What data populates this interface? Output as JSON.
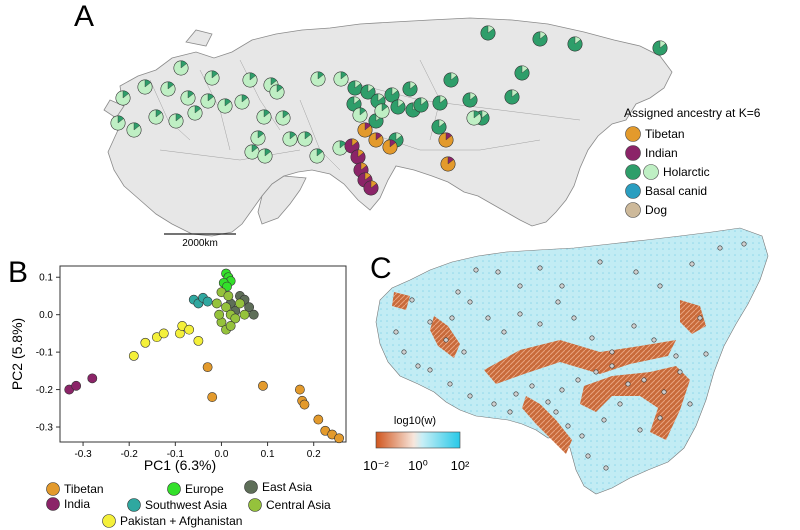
{
  "panels": {
    "a": {
      "letter": "A",
      "scalebar_label": "2000km",
      "legend": {
        "title": "Assigned ancestry at K=6",
        "items": [
          {
            "label": "Tibetan",
            "colors": [
              "#E39A2C"
            ]
          },
          {
            "label": "Indian",
            "colors": [
              "#8B2468"
            ]
          },
          {
            "label": "Holarctic",
            "colors": [
              "#2E9E6A",
              "#BFEFC4"
            ]
          },
          {
            "label": "Basal canid",
            "colors": [
              "#2A9EC0"
            ]
          },
          {
            "label": "Dog",
            "colors": [
              "#CDB99A"
            ]
          }
        ]
      },
      "colors": {
        "tibetan": "#E39A2C",
        "indian": "#8B2468",
        "holarctic_dark": "#2E9E6A",
        "holarctic_light": "#BFEFC4",
        "basal": "#2A9EC0",
        "dog": "#CDB99A"
      }
    },
    "b": {
      "letter": "B",
      "legend": [
        {
          "label": "Tibetan",
          "color": "#E39A2C"
        },
        {
          "label": "India",
          "color": "#8B2468"
        },
        {
          "label": "Pakistan + Afghanistan",
          "color": "#F4F03A"
        },
        {
          "label": "Europe",
          "color": "#33E02A"
        },
        {
          "label": "Southwest Asia",
          "color": "#2FA8A0"
        },
        {
          "label": "East Asia",
          "color": "#5E6E58"
        },
        {
          "label": "Central Asia",
          "color": "#95C23C"
        }
      ],
      "chart_data": {
        "type": "scatter",
        "xlabel": "PC1 (6.3%)",
        "ylabel": "PC2 (5.8%)",
        "xlim": [
          -0.35,
          0.27
        ],
        "ylim": [
          -0.34,
          0.13
        ],
        "xticks": [
          -0.3,
          -0.2,
          -0.1,
          0.0,
          0.1,
          0.2
        ],
        "yticks": [
          0.1,
          0.0,
          -0.1,
          -0.2,
          -0.3
        ],
        "xtick_labels": [
          "-0.3",
          "-0.2",
          "-0.1",
          "0.0",
          "0.1",
          "0.2"
        ],
        "ytick_labels": [
          "0.1",
          "0.0",
          "-0.1",
          "-0.2",
          "-0.3"
        ],
        "series": [
          {
            "name": "Tibetan",
            "color": "#E39A2C",
            "points": [
              [
                -0.03,
                -0.14
              ],
              [
                -0.02,
                -0.22
              ],
              [
                0.09,
                -0.19
              ],
              [
                0.17,
                -0.2
              ],
              [
                0.175,
                -0.23
              ],
              [
                0.18,
                -0.24
              ],
              [
                0.21,
                -0.28
              ],
              [
                0.225,
                -0.31
              ],
              [
                0.24,
                -0.32
              ],
              [
                0.255,
                -0.33
              ]
            ]
          },
          {
            "name": "India",
            "color": "#8B2468",
            "points": [
              [
                -0.33,
                -0.2
              ],
              [
                -0.315,
                -0.19
              ],
              [
                -0.28,
                -0.17
              ]
            ]
          },
          {
            "name": "Pakistan + Afghanistan",
            "color": "#F4F03A",
            "points": [
              [
                -0.19,
                -0.11
              ],
              [
                -0.165,
                -0.075
              ],
              [
                -0.14,
                -0.06
              ],
              [
                -0.125,
                -0.05
              ],
              [
                -0.09,
                -0.05
              ],
              [
                -0.085,
                -0.03
              ],
              [
                -0.07,
                -0.04
              ],
              [
                -0.05,
                -0.07
              ]
            ]
          },
          {
            "name": "Europe",
            "color": "#33E02A",
            "points": [
              [
                0.01,
                0.11
              ],
              [
                0.015,
                0.1
              ],
              [
                0.02,
                0.09
              ],
              [
                0.005,
                0.085
              ],
              [
                0.012,
                0.075
              ]
            ]
          },
          {
            "name": "Southwest Asia",
            "color": "#2FA8A0",
            "points": [
              [
                -0.06,
                0.04
              ],
              [
                -0.05,
                0.03
              ],
              [
                -0.04,
                0.045
              ],
              [
                -0.03,
                0.035
              ]
            ]
          },
          {
            "name": "East Asia",
            "color": "#5E6E58",
            "points": [
              [
                0.02,
                0.03
              ],
              [
                0.04,
                0.05
              ],
              [
                0.05,
                0.04
              ],
              [
                0.06,
                0.02
              ],
              [
                0.07,
                0.0
              ],
              [
                0.03,
                0.01
              ]
            ]
          },
          {
            "name": "Central Asia",
            "color": "#95C23C",
            "points": [
              [
                0.0,
                0.06
              ],
              [
                0.01,
                0.02
              ],
              [
                0.02,
                0.0
              ],
              [
                0.0,
                -0.02
              ],
              [
                0.01,
                -0.04
              ],
              [
                -0.01,
                0.03
              ],
              [
                0.03,
                -0.01
              ],
              [
                0.04,
                0.03
              ],
              [
                0.05,
                0.0
              ],
              [
                -0.005,
                0.0
              ],
              [
                0.02,
                -0.03
              ],
              [
                0.015,
                0.05
              ]
            ]
          }
        ]
      }
    },
    "c": {
      "letter": "C",
      "colorbar": {
        "title": "log10(w)",
        "tick_labels": [
          "10⁻²",
          "10⁰",
          "10²"
        ],
        "colors": [
          "#D0561E",
          "#F7E6DC",
          "#C7EEF6",
          "#27C9E8"
        ]
      }
    }
  }
}
